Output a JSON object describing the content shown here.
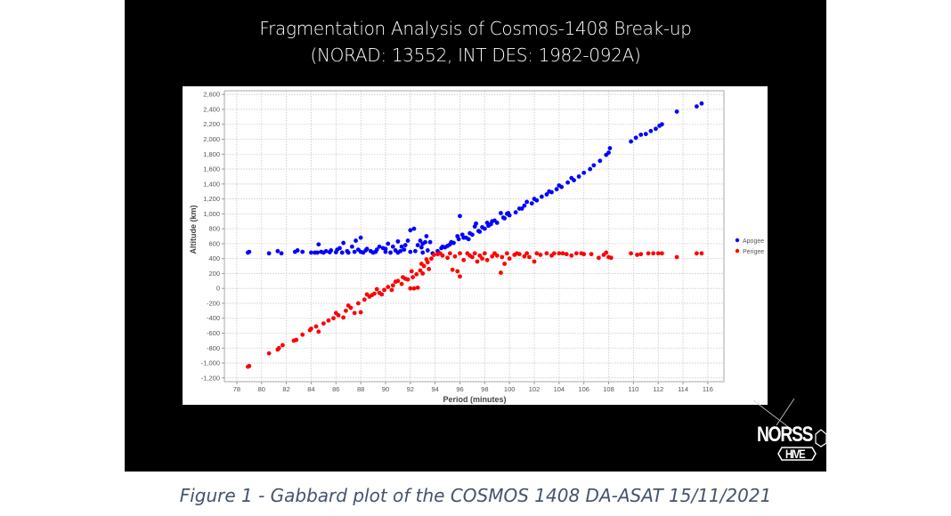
{
  "title_line1": "Fragmentation Analysis of Cosmos-1408 Break-up",
  "title_line2": "(NORAD: 13552, INT DES: 1982-092A)",
  "caption": "Figure 1 - Gabbard plot of the COSMOS 1408 DA-ASAT 15/11/2021",
  "logo": {
    "line1": "NORSS",
    "line2": "HIVE"
  },
  "chart_data": {
    "type": "scatter",
    "title": "Fragmentation Analysis of Cosmos-1408 Break-up (NORAD: 13552, INT DES: 1982-092A)",
    "xlabel": "Period (minutes)",
    "ylabel": "Altitude (km)",
    "xlim": [
      77,
      117.3
    ],
    "ylim": [
      -1250,
      2650
    ],
    "xticks": [
      "78",
      "80",
      "82",
      "84",
      "86",
      "88",
      "90",
      "92",
      "94",
      "96",
      "98",
      "100",
      "102",
      "104",
      "106",
      "108",
      "110",
      "112",
      "114",
      "116"
    ],
    "yticks": [
      "2,600",
      "2,400",
      "2,200",
      "2,000",
      "1,800",
      "1,600",
      "1,400",
      "1,200",
      "1,000",
      "800",
      "600",
      "400",
      "200",
      "0",
      "-200",
      "-400",
      "-600",
      "-800",
      "-1,000",
      "-1,200"
    ],
    "grid": true,
    "legend_position": "right",
    "series": [
      {
        "name": "Apogee",
        "color": "#0000ff",
        "points": [
          [
            78.9,
            480
          ],
          [
            79.0,
            490
          ],
          [
            80.6,
            470
          ],
          [
            81.3,
            500
          ],
          [
            81.6,
            470
          ],
          [
            82.7,
            490
          ],
          [
            82.9,
            510
          ],
          [
            83.3,
            490
          ],
          [
            84.0,
            480
          ],
          [
            84.6,
            590
          ],
          [
            84.8,
            490
          ],
          [
            85.2,
            500
          ],
          [
            85.6,
            510
          ],
          [
            86.1,
            520
          ],
          [
            86.6,
            610
          ],
          [
            86.9,
            500
          ],
          [
            87.3,
            560
          ],
          [
            87.6,
            640
          ],
          [
            88.0,
            680
          ],
          [
            88.4,
            510
          ],
          [
            88.8,
            500
          ],
          [
            89.3,
            520
          ],
          [
            89.8,
            540
          ],
          [
            90.2,
            600
          ],
          [
            90.6,
            560
          ],
          [
            91.0,
            630
          ],
          [
            91.3,
            560
          ],
          [
            91.8,
            640
          ],
          [
            92.0,
            780
          ],
          [
            92.3,
            800
          ],
          [
            92.6,
            580
          ],
          [
            93.0,
            600
          ],
          [
            93.3,
            700
          ],
          [
            93.6,
            620
          ],
          [
            84.3,
            480
          ],
          [
            85.0,
            480
          ],
          [
            86.0,
            485
          ],
          [
            87.0,
            480
          ],
          [
            88.0,
            490
          ],
          [
            89.0,
            480
          ],
          [
            90.0,
            490
          ],
          [
            91.0,
            480
          ],
          [
            92.0,
            490
          ],
          [
            93.0,
            480
          ],
          [
            93.8,
            470
          ],
          [
            89.5,
            560
          ],
          [
            90.8,
            510
          ],
          [
            92.8,
            640
          ],
          [
            91.5,
            520
          ],
          [
            88.5,
            530
          ],
          [
            84.5,
            480
          ],
          [
            85.5,
            485
          ],
          [
            86.5,
            480
          ],
          [
            87.5,
            490
          ],
          [
            88.2,
            480
          ],
          [
            89.2,
            490
          ],
          [
            90.4,
            480
          ],
          [
            91.2,
            500
          ],
          [
            92.4,
            500
          ],
          [
            93.4,
            510
          ],
          [
            90.0,
            530
          ],
          [
            91.6,
            580
          ],
          [
            92.9,
            550
          ],
          [
            93.2,
            620
          ],
          [
            86.3,
            540
          ],
          [
            87.8,
            520
          ],
          [
            94.2,
            500
          ],
          [
            94.5,
            540
          ],
          [
            94.8,
            550
          ],
          [
            95.0,
            570
          ],
          [
            95.2,
            590
          ],
          [
            95.5,
            610
          ],
          [
            95.8,
            700
          ],
          [
            96.0,
            970
          ],
          [
            96.2,
            720
          ],
          [
            96.3,
            680
          ],
          [
            96.5,
            680
          ],
          [
            96.7,
            660
          ],
          [
            97.0,
            720
          ],
          [
            97.2,
            830
          ],
          [
            97.3,
            870
          ],
          [
            97.5,
            770
          ],
          [
            97.6,
            760
          ],
          [
            98.0,
            800
          ],
          [
            98.2,
            880
          ],
          [
            98.3,
            840
          ],
          [
            98.5,
            860
          ],
          [
            98.6,
            900
          ],
          [
            99.0,
            880
          ],
          [
            99.3,
            1010
          ],
          [
            99.5,
            950
          ],
          [
            99.6,
            940
          ],
          [
            99.8,
            1000
          ],
          [
            100.0,
            980
          ],
          [
            100.5,
            1020
          ],
          [
            100.8,
            1070
          ],
          [
            101.0,
            1070
          ],
          [
            101.4,
            1160
          ],
          [
            101.8,
            1140
          ],
          [
            102.2,
            1180
          ],
          [
            102.6,
            1230
          ],
          [
            103.0,
            1260
          ],
          [
            103.4,
            1290
          ],
          [
            103.8,
            1330
          ],
          [
            104.2,
            1360
          ],
          [
            104.7,
            1420
          ],
          [
            105.2,
            1450
          ],
          [
            105.6,
            1500
          ],
          [
            106.0,
            1550
          ],
          [
            106.5,
            1600
          ],
          [
            106.8,
            1650
          ],
          [
            107.3,
            1710
          ],
          [
            107.8,
            1790
          ],
          [
            108.0,
            1820
          ],
          [
            108.1,
            1880
          ],
          [
            109.8,
            1970
          ],
          [
            110.2,
            2020
          ],
          [
            110.6,
            2060
          ],
          [
            111.0,
            2070
          ],
          [
            111.4,
            2110
          ],
          [
            111.8,
            2140
          ],
          [
            112.1,
            2180
          ],
          [
            112.3,
            2200
          ],
          [
            113.5,
            2370
          ],
          [
            115.1,
            2440
          ],
          [
            115.5,
            2480
          ],
          [
            94.6,
            560
          ],
          [
            95.3,
            620
          ],
          [
            95.9,
            660
          ],
          [
            96.8,
            740
          ],
          [
            97.8,
            820
          ],
          [
            98.8,
            910
          ],
          [
            99.9,
            1010
          ],
          [
            101.2,
            1110
          ],
          [
            102.0,
            1200
          ],
          [
            103.2,
            1300
          ],
          [
            104.0,
            1380
          ],
          [
            105.0,
            1480
          ]
        ]
      },
      {
        "name": "Perigee",
        "color": "#ff0000",
        "points": [
          [
            78.9,
            -1050
          ],
          [
            79.0,
            -1040
          ],
          [
            80.6,
            -870
          ],
          [
            81.3,
            -820
          ],
          [
            81.4,
            -800
          ],
          [
            81.7,
            -760
          ],
          [
            82.6,
            -700
          ],
          [
            82.8,
            -690
          ],
          [
            83.3,
            -620
          ],
          [
            83.9,
            -560
          ],
          [
            84.0,
            -540
          ],
          [
            84.4,
            -510
          ],
          [
            84.6,
            -580
          ],
          [
            85.0,
            -470
          ],
          [
            85.4,
            -430
          ],
          [
            85.8,
            -400
          ],
          [
            86.2,
            -360
          ],
          [
            86.6,
            -390
          ],
          [
            86.8,
            -300
          ],
          [
            87.2,
            -260
          ],
          [
            87.5,
            -330
          ],
          [
            87.8,
            -200
          ],
          [
            88.0,
            -320
          ],
          [
            88.3,
            -150
          ],
          [
            88.7,
            -110
          ],
          [
            89.1,
            -70
          ],
          [
            89.5,
            -60
          ],
          [
            89.9,
            -20
          ],
          [
            90.2,
            20
          ],
          [
            90.6,
            40
          ],
          [
            91.0,
            100
          ],
          [
            91.3,
            60
          ],
          [
            91.6,
            130
          ],
          [
            92.0,
            0
          ],
          [
            92.3,
            0
          ],
          [
            92.5,
            190
          ],
          [
            92.8,
            240
          ],
          [
            93.1,
            300
          ],
          [
            93.4,
            350
          ],
          [
            93.7,
            400
          ],
          [
            90.5,
            -20
          ],
          [
            91.8,
            120
          ],
          [
            92.6,
            10
          ],
          [
            93.0,
            200
          ],
          [
            89.7,
            -80
          ],
          [
            88.9,
            -90
          ],
          [
            93.5,
            260
          ],
          [
            92.2,
            150
          ],
          [
            89.3,
            -10
          ],
          [
            90.8,
            90
          ],
          [
            91.4,
            150
          ],
          [
            92.1,
            230
          ],
          [
            92.9,
            330
          ],
          [
            93.3,
            390
          ],
          [
            93.9,
            450
          ],
          [
            88.5,
            -80
          ],
          [
            87.0,
            -230
          ],
          [
            86.0,
            -330
          ],
          [
            94.2,
            460
          ],
          [
            94.6,
            440
          ],
          [
            95.0,
            410
          ],
          [
            95.4,
            250
          ],
          [
            95.8,
            230
          ],
          [
            96.0,
            160
          ],
          [
            96.3,
            380
          ],
          [
            96.8,
            440
          ],
          [
            97.0,
            420
          ],
          [
            97.4,
            360
          ],
          [
            97.8,
            400
          ],
          [
            98.2,
            380
          ],
          [
            98.6,
            430
          ],
          [
            99.0,
            440
          ],
          [
            99.3,
            210
          ],
          [
            99.6,
            330
          ],
          [
            100.0,
            400
          ],
          [
            100.4,
            450
          ],
          [
            100.8,
            460
          ],
          [
            101.2,
            430
          ],
          [
            101.6,
            420
          ],
          [
            102.0,
            360
          ],
          [
            102.5,
            450
          ],
          [
            103.0,
            470
          ],
          [
            103.4,
            440
          ],
          [
            104.0,
            470
          ],
          [
            104.6,
            460
          ],
          [
            105.0,
            440
          ],
          [
            105.4,
            470
          ],
          [
            106.0,
            460
          ],
          [
            106.6,
            460
          ],
          [
            107.2,
            410
          ],
          [
            107.6,
            450
          ],
          [
            107.8,
            480
          ],
          [
            108.0,
            420
          ],
          [
            108.2,
            410
          ],
          [
            109.8,
            470
          ],
          [
            110.3,
            450
          ],
          [
            110.6,
            460
          ],
          [
            111.2,
            470
          ],
          [
            111.6,
            470
          ],
          [
            112.0,
            470
          ],
          [
            112.3,
            470
          ],
          [
            113.5,
            420
          ],
          [
            115.1,
            470
          ],
          [
            115.5,
            470
          ],
          [
            94.4,
            470
          ],
          [
            95.2,
            470
          ],
          [
            96.0,
            470
          ],
          [
            96.6,
            470
          ],
          [
            97.2,
            470
          ],
          [
            98.0,
            470
          ],
          [
            98.8,
            470
          ],
          [
            99.8,
            470
          ],
          [
            100.6,
            470
          ],
          [
            101.4,
            470
          ],
          [
            102.2,
            470
          ],
          [
            103.6,
            470
          ],
          [
            104.3,
            470
          ],
          [
            105.8,
            470
          ],
          [
            95.6,
            430
          ],
          [
            97.6,
            440
          ],
          [
            99.4,
            420
          ]
        ]
      }
    ]
  }
}
